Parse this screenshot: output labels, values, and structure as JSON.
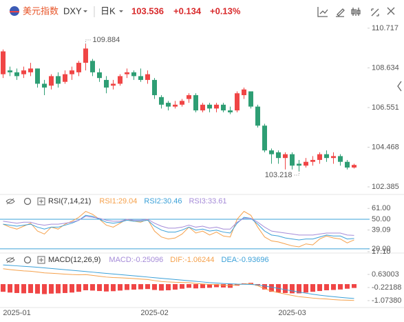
{
  "header": {
    "name": "美元指数",
    "symbol": "DXY",
    "period": "日K",
    "price": "103.536",
    "change": "+0.134",
    "change_pct": "+0.13%"
  },
  "chart_data": [
    {
      "type": "candlestick",
      "up_color": "#f04545",
      "down_color": "#2e9e74",
      "ylim": [
        102.06,
        110.93
      ],
      "yticks": [
        110.717,
        108.634,
        106.551,
        104.468,
        102.385
      ],
      "open": [
        108.3,
        108.5,
        108.4,
        108.3,
        108.4,
        108.6,
        107.8,
        107.7,
        108.2,
        107.9,
        108.3,
        108.4,
        108.9,
        109.0,
        108.4,
        108.0,
        107.7,
        107.8,
        108.3,
        108.4,
        108.2,
        108.0,
        108.0,
        107.1,
        106.8,
        106.6,
        106.7,
        107.0,
        107.2,
        106.4,
        106.7,
        106.5,
        106.7,
        106.4,
        106.4,
        107.2,
        107.4,
        106.6,
        105.6,
        104.3,
        104.2,
        103.9,
        104.1,
        103.6,
        103.5,
        103.7,
        103.8,
        104.1,
        103.9,
        104.0,
        103.7,
        103.402
      ],
      "high": [
        109.6,
        108.7,
        108.6,
        108.7,
        108.9,
        108.6,
        108.0,
        108.3,
        108.4,
        108.5,
        108.7,
        109.0,
        109.884,
        109.1,
        108.6,
        108.2,
        108.0,
        108.3,
        108.6,
        108.5,
        108.6,
        108.5,
        108.1,
        107.2,
        106.9,
        106.9,
        107.0,
        107.3,
        107.3,
        106.8,
        106.8,
        106.8,
        106.8,
        106.6,
        107.4,
        107.6,
        107.4,
        106.7,
        105.7,
        104.4,
        104.3,
        104.2,
        104.2,
        103.8,
        103.9,
        104.0,
        104.2,
        104.3,
        104.2,
        104.1,
        103.8,
        103.6
      ],
      "low": [
        108.1,
        108.2,
        108.0,
        108.1,
        108.2,
        107.6,
        107.2,
        107.5,
        107.6,
        107.8,
        108.0,
        108.2,
        108.5,
        108.2,
        107.9,
        107.3,
        107.5,
        107.7,
        108.1,
        108.0,
        107.9,
        107.8,
        107.0,
        106.5,
        106.4,
        106.5,
        106.6,
        106.8,
        106.3,
        106.3,
        106.3,
        106.3,
        106.3,
        106.2,
        106.3,
        107.0,
        106.5,
        105.5,
        104.2,
        103.6,
        103.6,
        103.3,
        103.3,
        103.218,
        103.4,
        103.5,
        103.6,
        103.7,
        103.6,
        103.5,
        103.3,
        103.35
      ],
      "close": [
        109.5,
        108.4,
        108.2,
        108.5,
        108.6,
        107.8,
        107.6,
        108.2,
        107.8,
        108.3,
        108.5,
        108.9,
        109.65,
        108.4,
        108.1,
        107.6,
        107.8,
        108.2,
        108.4,
        108.2,
        108.0,
        108.3,
        107.2,
        106.7,
        106.6,
        106.7,
        106.9,
        107.2,
        106.4,
        106.7,
        106.5,
        106.7,
        106.4,
        106.3,
        107.3,
        107.5,
        106.6,
        105.6,
        104.3,
        104.1,
        103.9,
        104.1,
        103.5,
        103.5,
        103.7,
        103.8,
        104.1,
        103.9,
        104.0,
        103.7,
        103.4,
        103.536
      ]
    },
    {
      "type": "line",
      "title": "RSI(7,14,21)",
      "ylim": [
        16.4,
        62.6
      ],
      "yticks": [
        {
          "value": 61,
          "label": "61.00"
        },
        {
          "value": 50,
          "label": "50.00"
        },
        39.09,
        {
          "value": 20,
          "label": "20.00"
        },
        {
          "value": 17.1,
          "label": "17.10"
        }
      ],
      "hlines": [
        50,
        20
      ],
      "hline_color": "#3aa0d8",
      "series": [
        {
          "name": "RSI1:29.04",
          "color": "#f5a04a",
          "values": [
            45,
            42,
            40,
            43,
            46,
            38,
            35,
            42,
            40,
            45,
            48,
            52,
            58,
            55,
            50,
            44,
            42,
            46,
            50,
            48,
            47,
            50,
            38,
            32,
            30,
            31,
            35,
            42,
            36,
            38,
            34,
            37,
            33,
            32,
            50,
            58,
            54,
            42,
            32,
            28,
            27,
            25,
            23,
            22,
            25,
            24,
            30,
            33,
            31,
            30,
            26,
            29.04
          ]
        },
        {
          "name": "RSI2:30.46",
          "color": "#3aa0d8",
          "values": [
            45,
            44,
            43,
            44,
            45,
            42,
            40,
            42,
            42,
            44,
            46,
            49,
            54,
            53,
            50,
            47,
            46,
            47,
            49,
            48,
            48,
            49,
            43,
            39,
            37,
            37,
            39,
            42,
            39,
            40,
            38,
            39,
            37,
            36,
            46,
            52,
            51,
            45,
            38,
            34,
            33,
            31,
            30,
            29,
            30,
            30,
            32,
            34,
            33,
            33,
            30,
            30.46
          ]
        },
        {
          "name": "RSI3:33.61",
          "color": "#a58bd8",
          "values": [
            48,
            47,
            46,
            47,
            47,
            45,
            44,
            45,
            45,
            46,
            47,
            49,
            53,
            52,
            51,
            49,
            48,
            48,
            50,
            49,
            49,
            50,
            46,
            43,
            41,
            41,
            42,
            44,
            42,
            43,
            41,
            42,
            40,
            40,
            47,
            51,
            51,
            47,
            42,
            38,
            37,
            36,
            35,
            34,
            34,
            34,
            35,
            36,
            36,
            36,
            34,
            33.61
          ]
        }
      ]
    },
    {
      "type": "bar",
      "title": "MACD(12,26,9)",
      "ylim": [
        -1.48,
        1.35
      ],
      "yticks": [
        0.63003,
        -0.22188,
        {
          "value": -1.0738,
          "label": "-1.07380"
        }
      ],
      "categories": [
        null,
        null,
        "2025-01",
        null,
        null,
        null,
        null,
        null,
        null,
        null,
        null,
        null,
        null,
        null,
        null,
        null,
        null,
        null,
        null,
        null,
        null,
        null,
        "2025-02",
        null,
        null,
        null,
        null,
        null,
        null,
        null,
        null,
        null,
        null,
        null,
        null,
        null,
        null,
        null,
        null,
        null,
        null,
        null,
        "2025-03",
        null,
        null,
        null,
        null,
        null,
        null,
        null,
        null,
        null
      ],
      "series": [
        {
          "name": "MACD:-0.25096",
          "color": "#f04545",
          "label_color": "#a58bd8",
          "values": [
            -0.5,
            -0.55,
            -0.58,
            -0.6,
            -0.58,
            -0.62,
            -0.65,
            -0.62,
            -0.6,
            -0.58,
            -0.55,
            -0.5,
            -0.4,
            -0.42,
            -0.45,
            -0.48,
            -0.46,
            -0.42,
            -0.38,
            -0.36,
            -0.34,
            -0.32,
            -0.38,
            -0.42,
            -0.4,
            -0.36,
            -0.3,
            -0.24,
            -0.28,
            -0.26,
            -0.24,
            -0.2,
            -0.22,
            -0.24,
            -0.1,
            0.05,
            0.08,
            -0.1,
            -0.35,
            -0.5,
            -0.55,
            -0.58,
            -0.6,
            -0.6,
            -0.55,
            -0.5,
            -0.45,
            -0.4,
            -0.38,
            -0.35,
            -0.3,
            -0.25096
          ]
        },
        {
          "name": "DIF:-1.06244",
          "color": "#f5a04a",
          "type": "line",
          "values": [
            1.0,
            0.945,
            0.9,
            0.86,
            0.84,
            0.79,
            0.735,
            0.71,
            0.68,
            0.65,
            0.625,
            0.61,
            0.62,
            0.57,
            0.515,
            0.46,
            0.43,
            0.41,
            0.39,
            0.36,
            0.33,
            0.3,
            0.23,
            0.17,
            0.14,
            0.12,
            0.11,
            0.1,
            0.04,
            0.01,
            -0.02,
            -0.03,
            -0.07,
            -0.1,
            -0.05,
            0.015,
            0.02,
            -0.1,
            -0.295,
            -0.45,
            -0.555,
            -0.65,
            -0.74,
            -0.82,
            -0.865,
            -0.91,
            -0.945,
            -0.97,
            -1.01,
            -1.035,
            -1.05,
            -1.06244
          ]
        },
        {
          "name": "DEA:-0.93696",
          "color": "#3aa0d8",
          "type": "line",
          "values": [
            1.25,
            1.22,
            1.19,
            1.16,
            1.13,
            1.1,
            1.06,
            1.02,
            0.98,
            0.94,
            0.9,
            0.86,
            0.82,
            0.78,
            0.74,
            0.7,
            0.66,
            0.62,
            0.58,
            0.54,
            0.5,
            0.46,
            0.42,
            0.38,
            0.34,
            0.3,
            0.26,
            0.22,
            0.18,
            0.14,
            0.1,
            0.07,
            0.04,
            0.02,
            0.0,
            -0.01,
            -0.02,
            -0.05,
            -0.12,
            -0.2,
            -0.28,
            -0.36,
            -0.44,
            -0.52,
            -0.59,
            -0.66,
            -0.72,
            -0.77,
            -0.82,
            -0.86,
            -0.9,
            -0.93696
          ]
        }
      ]
    }
  ]
}
